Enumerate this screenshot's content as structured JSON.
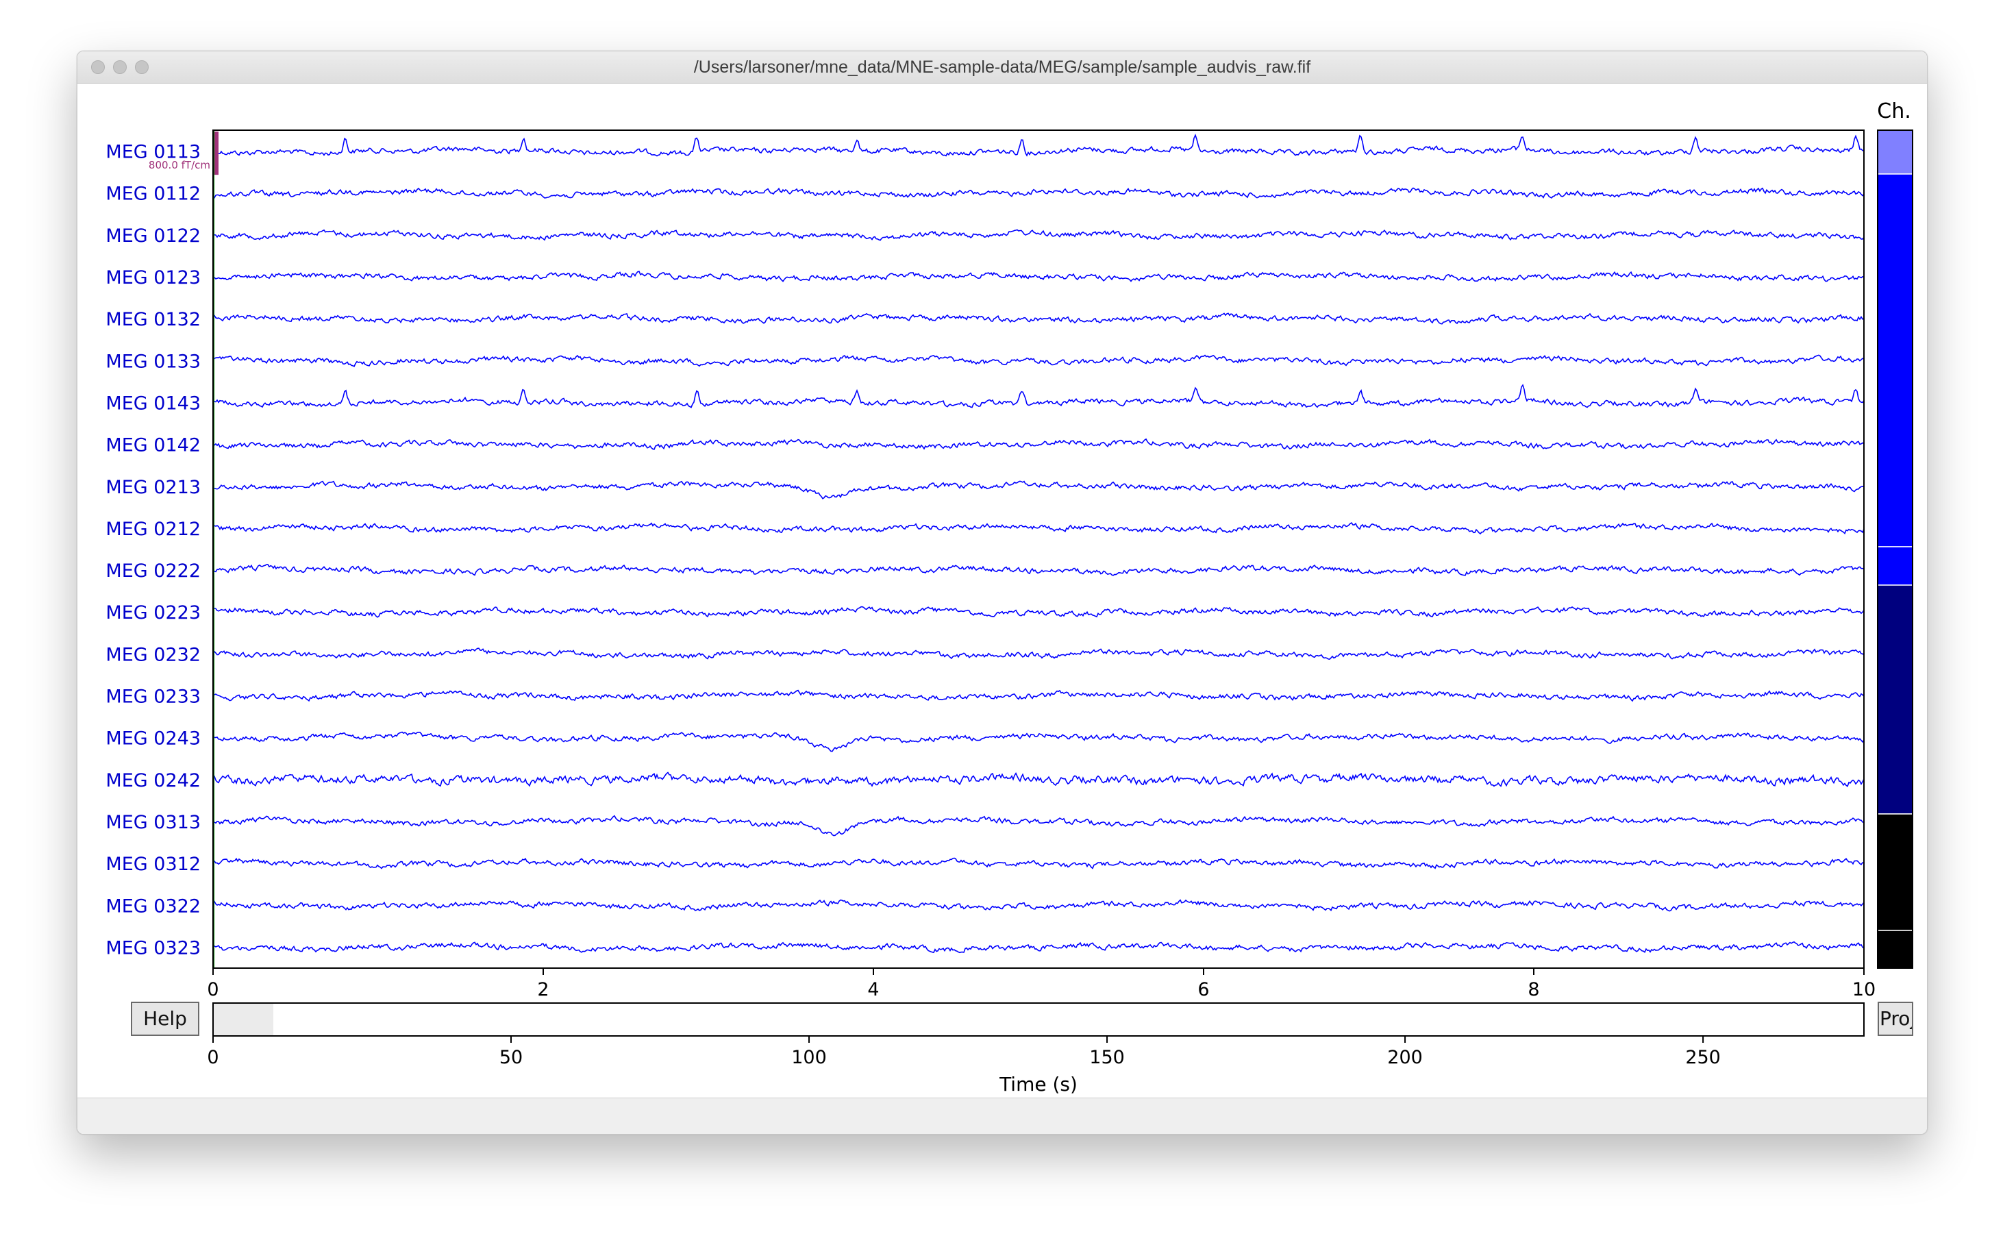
{
  "window": {
    "title": "/Users/larsoner/mne_data/MNE-sample-data/MEG/sample/sample_audvis_raw.fif"
  },
  "channels": [
    "MEG 0113",
    "MEG 0112",
    "MEG 0122",
    "MEG 0123",
    "MEG 0132",
    "MEG 0133",
    "MEG 0143",
    "MEG 0142",
    "MEG 0213",
    "MEG 0212",
    "MEG 0222",
    "MEG 0223",
    "MEG 0232",
    "MEG 0233",
    "MEG 0243",
    "MEG 0242",
    "MEG 0313",
    "MEG 0312",
    "MEG 0322",
    "MEG 0323"
  ],
  "scale_bar": {
    "label": "800.0 fT/cm"
  },
  "time_axis": {
    "ticks": [
      "0",
      "2",
      "4",
      "6",
      "8",
      "10"
    ],
    "range": [
      0,
      10
    ]
  },
  "overview_axis": {
    "ticks": [
      "0",
      "50",
      "100",
      "150",
      "200",
      "250"
    ],
    "label": "Time (s)",
    "range": [
      0,
      277
    ],
    "view_window": [
      0,
      10
    ]
  },
  "buttons": {
    "help": "Help",
    "proj": "Proj"
  },
  "channel_scrollbar": {
    "title": "Ch.",
    "segments": [
      "#8080ff",
      "#0000ff",
      "#0000ff",
      "#00007f",
      "#000000",
      "#000000"
    ]
  },
  "colors": {
    "trace": "#0000ff",
    "channel_label": "#0000cc",
    "scale_bar": "#a0327a",
    "start_line": "#008000"
  }
}
